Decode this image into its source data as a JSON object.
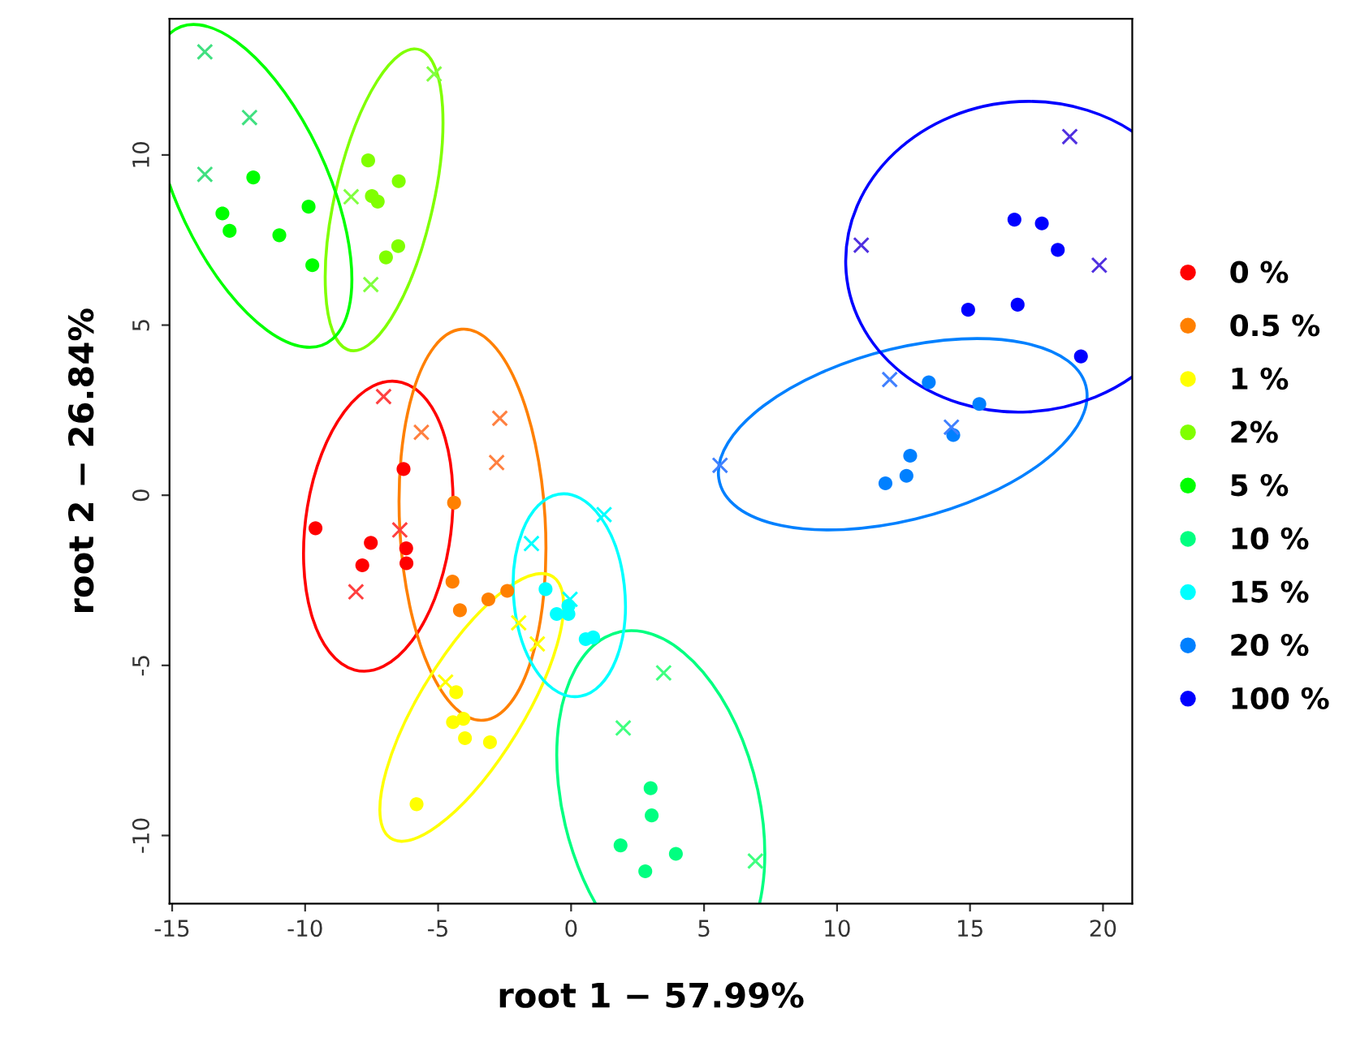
{
  "chart_data": {
    "type": "scatter",
    "xlabel": "root 1 − 57.99%",
    "ylabel": "root 2 − 26.84%",
    "xlim": [
      -15.1,
      21.1
    ],
    "ylim": [
      -12.0,
      14.0
    ],
    "xticks": [
      -15,
      -10,
      -5,
      0,
      5,
      10,
      15,
      20
    ],
    "yticks": [
      -10,
      -5,
      0,
      5,
      10
    ],
    "grid": false,
    "legend": "right",
    "series": [
      {
        "name": "0 %",
        "color": "#ff0000",
        "marker": "circle",
        "x": [
          -6.3,
          -9.61,
          -7.53,
          -7.85,
          -6.2,
          -6.19
        ],
        "values": [
          0.77,
          -0.97,
          -1.4,
          -2.06,
          -1.56,
          -2.0
        ]
      },
      {
        "name": "0.5 %",
        "color": "#ff8000",
        "marker": "circle",
        "x": [
          -4.4,
          -4.46,
          -4.18,
          -3.11,
          -2.4
        ],
        "values": [
          -0.22,
          -2.54,
          -3.38,
          -3.06,
          -2.81
        ]
      },
      {
        "name": "1 %",
        "color": "#ffff00",
        "marker": "circle",
        "x": [
          -4.32,
          -4.44,
          -4.05,
          -3.99,
          -3.05,
          -5.81
        ],
        "values": [
          -5.79,
          -6.67,
          -6.57,
          -7.14,
          -7.26,
          -9.08
        ]
      },
      {
        "name": "2%",
        "color": "#80ff00",
        "marker": "circle",
        "x": [
          -7.63,
          -6.48,
          -7.49,
          -7.27,
          -6.5,
          -6.96
        ],
        "values": [
          9.84,
          9.23,
          8.79,
          8.63,
          7.32,
          6.99
        ]
      },
      {
        "name": "5 %",
        "color": "#00ff00",
        "marker": "circle",
        "x": [
          -11.95,
          -13.11,
          -12.84,
          -10.97,
          -9.87,
          -9.73
        ],
        "values": [
          9.34,
          8.28,
          7.77,
          7.64,
          8.48,
          6.76
        ]
      },
      {
        "name": "10 %",
        "color": "#00ff80",
        "marker": "circle",
        "x": [
          2.99,
          3.03,
          1.86,
          3.94,
          2.79
        ],
        "values": [
          -8.61,
          -9.41,
          -10.29,
          -10.54,
          -11.05
        ]
      },
      {
        "name": "15 %",
        "color": "#00ffff",
        "marker": "circle",
        "x": [
          -0.96,
          -0.54,
          -0.1,
          -0.1,
          0.55,
          0.83
        ],
        "values": [
          -2.76,
          -3.49,
          -3.49,
          -3.25,
          -4.23,
          -4.18
        ]
      },
      {
        "name": "20 %",
        "color": "#0080ff",
        "marker": "circle",
        "x": [
          13.45,
          15.35,
          14.37,
          12.75,
          12.61,
          11.82
        ],
        "values": [
          3.32,
          2.68,
          1.77,
          1.16,
          0.57,
          0.35
        ]
      },
      {
        "name": "100 %",
        "color": "#0000ff",
        "marker": "circle",
        "x": [
          16.67,
          17.7,
          18.3,
          14.93,
          16.79,
          19.17
        ],
        "values": [
          8.1,
          7.99,
          7.21,
          5.45,
          5.6,
          4.08
        ]
      },
      {
        "color": "#ff4040",
        "marker": "cross",
        "x": [
          -7.05,
          -6.44,
          -8.09
        ],
        "values": [
          2.9,
          -1.02,
          -2.84
        ]
      },
      {
        "color": "#ff8040",
        "marker": "cross",
        "x": [
          -5.63,
          -2.68,
          -2.8
        ],
        "values": [
          1.85,
          2.26,
          0.96
        ]
      },
      {
        "color": "#ffff00",
        "marker": "cross",
        "x": [
          -1.97,
          -1.27,
          -4.72
        ],
        "values": [
          -3.75,
          -4.37,
          -5.49
        ]
      },
      {
        "color": "#80ff40",
        "marker": "cross",
        "x": [
          -5.15,
          -8.27,
          -7.53
        ],
        "values": [
          12.38,
          8.77,
          6.19
        ]
      },
      {
        "color": "#40e080",
        "marker": "cross",
        "x": [
          -13.77,
          -12.09,
          -13.77
        ],
        "values": [
          13.03,
          11.1,
          9.43
        ]
      },
      {
        "color": "#40ff80",
        "marker": "cross",
        "x": [
          3.48,
          1.96,
          6.93
        ],
        "values": [
          -5.22,
          -6.84,
          -10.75
        ]
      },
      {
        "color": "#00ffff",
        "marker": "cross",
        "x": [
          -1.49,
          1.24,
          -0.04
        ],
        "values": [
          -1.42,
          -0.57,
          -3.06
        ]
      },
      {
        "color": "#4080ff",
        "marker": "cross",
        "x": [
          11.98,
          14.3,
          5.6
        ],
        "values": [
          3.4,
          2.0,
          0.88
        ]
      },
      {
        "color": "#5030e0",
        "marker": "cross",
        "x": [
          18.75,
          19.86,
          10.91
        ],
        "values": [
          10.54,
          6.76,
          7.35
        ]
      }
    ]
  }
}
